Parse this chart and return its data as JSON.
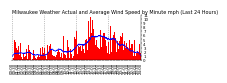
{
  "title": "Milwaukee Weather Actual and Average Wind Speed by Minute mph (Last 24 Hours)",
  "ylim": [
    0,
    11
  ],
  "yticks": [
    0,
    1,
    2,
    3,
    4,
    5,
    6,
    7,
    8,
    9,
    10,
    11
  ],
  "bar_color": "#ff0000",
  "line_color": "#0000ff",
  "background_color": "#ffffff",
  "grid_color": "#888888",
  "title_fontsize": 3.5,
  "tick_fontsize": 2.8,
  "n_points": 1440,
  "n_xticks": 48,
  "seed": 10
}
